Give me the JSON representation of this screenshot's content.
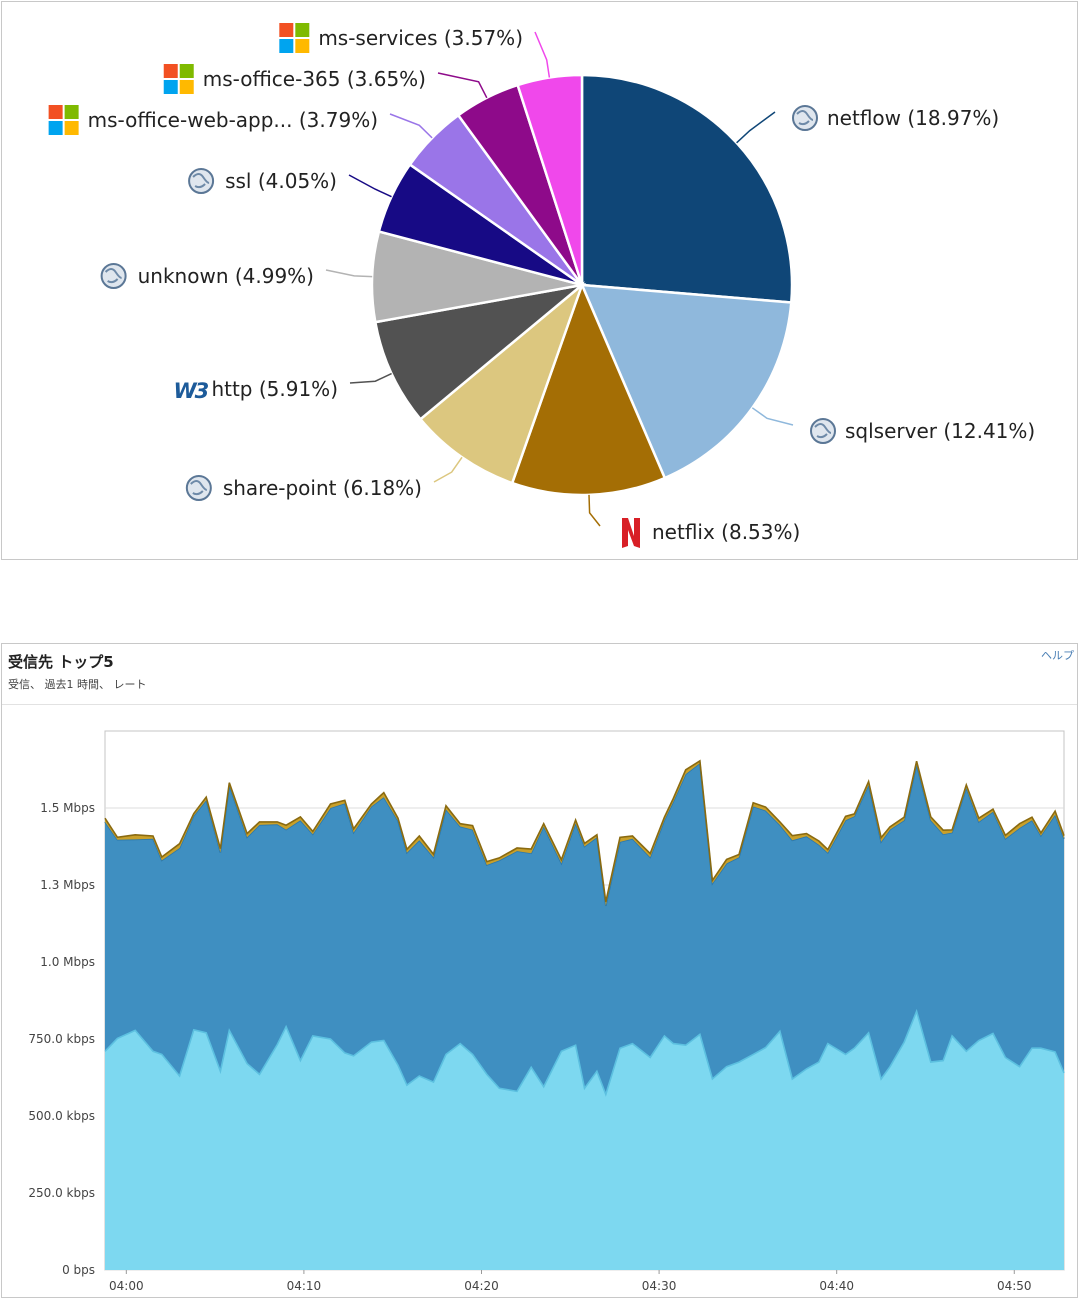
{
  "pie_panel": {
    "chart_data": {
      "type": "pie",
      "slices": [
        {
          "name": "netflow",
          "label": "netflow (18.97%)",
          "value": 18.97,
          "color": "#0f4677",
          "icon": "globe-icon"
        },
        {
          "name": "sqlserver",
          "label": "sqlserver (12.41%)",
          "value": 12.41,
          "color": "#8fb8dc",
          "icon": "globe-icon"
        },
        {
          "name": "netflix",
          "label": "netflix (8.53%)",
          "value": 8.53,
          "color": "#a46e05",
          "icon": "netflix-icon"
        },
        {
          "name": "share-point",
          "label": "share-point (6.18%)",
          "value": 6.18,
          "color": "#dcc77f",
          "icon": "globe-icon"
        },
        {
          "name": "http",
          "label": "http (5.91%)",
          "value": 5.91,
          "color": "#525252",
          "icon": "w3c-icon"
        },
        {
          "name": "unknown",
          "label": "unknown (4.99%)",
          "value": 4.99,
          "color": "#b3b3b3",
          "icon": "globe-icon"
        },
        {
          "name": "ssl",
          "label": "ssl (4.05%)",
          "value": 4.05,
          "color": "#170a85",
          "icon": "globe-icon"
        },
        {
          "name": "ms-office-web-app...",
          "label": "ms-office-web-app... (3.79%)",
          "value": 3.79,
          "color": "#9a75e8",
          "icon": "microsoft-icon"
        },
        {
          "name": "ms-office-365",
          "label": "ms-office-365 (3.65%)",
          "value": 3.65,
          "color": "#8e0a8a",
          "icon": "microsoft-icon"
        },
        {
          "name": "ms-services",
          "label": "ms-services (3.57%)",
          "value": 3.57,
          "color": "#f048eb",
          "icon": "microsoft-icon"
        }
      ]
    }
  },
  "area_panel": {
    "title": "受信先 トップ5",
    "subtitle": "受信、 過去1 時間、 レート",
    "help": "ヘルプ",
    "chart_data": {
      "type": "area",
      "stacked": true,
      "y_unit": "kbps",
      "ylim": [
        0,
        1750
      ],
      "ytick_values": [
        0,
        250,
        500,
        750,
        1000,
        1250,
        1500
      ],
      "ytick_labels": [
        "0 bps",
        "250.0 kbps",
        "500.0 kbps",
        "750.0 kbps",
        "1.0 Mbps",
        "1.3 Mbps",
        "1.5 Mbps"
      ],
      "x_minutes": [
        58.8,
        59.5,
        60.5,
        61.5,
        62.0,
        63.0,
        63.8,
        64.5,
        65.3,
        65.8,
        66.8,
        67.5,
        68.5,
        69.0,
        69.8,
        70.5,
        71.5,
        72.3,
        72.8,
        73.8,
        74.5,
        75.3,
        75.8,
        76.5,
        77.3,
        78.0,
        78.8,
        79.5,
        80.3,
        81.0,
        82.0,
        82.8,
        83.5,
        84.5,
        85.3,
        85.8,
        86.5,
        87.0,
        87.8,
        88.5,
        89.5,
        90.3,
        90.8,
        91.5,
        92.3,
        93.0,
        93.8,
        94.5,
        95.3,
        96.0,
        96.8,
        97.5,
        98.3,
        99.0,
        99.5,
        100.5,
        101.0,
        101.8,
        102.5,
        103.0,
        103.8,
        104.5,
        105.3,
        106.0,
        106.5,
        107.3,
        108.0,
        108.8,
        109.5,
        110.3,
        111.0,
        111.5,
        112.3,
        112.8
      ],
      "xtick_values": [
        60,
        70,
        80,
        90,
        100,
        110
      ],
      "xtick_labels": [
        "04:00",
        "04:10",
        "04:20",
        "04:30",
        "04:40",
        "04:50"
      ],
      "series": [
        {
          "color": "#7dd8f0",
          "line": "#5cc0e0",
          "values": [
            710,
            752,
            778,
            710,
            700,
            630,
            780,
            770,
            645,
            778,
            670,
            635,
            732,
            790,
            680,
            760,
            750,
            705,
            695,
            740,
            745,
            665,
            600,
            630,
            610,
            700,
            735,
            700,
            635,
            590,
            580,
            658,
            595,
            710,
            730,
            590,
            645,
            570,
            720,
            735,
            690,
            760,
            735,
            730,
            765,
            620,
            660,
            675,
            700,
            722,
            775,
            620,
            653,
            675,
            735,
            700,
            720,
            770,
            620,
            660,
            740,
            840,
            675,
            680,
            760,
            710,
            745,
            768,
            690,
            660,
            720,
            720,
            708,
            640
          ]
        },
        {
          "color": "#3f8fc1",
          "line": "#2a78ad",
          "values": [
            745,
            645,
            620,
            690,
            630,
            740,
            695,
            755,
            710,
            795,
            735,
            810,
            715,
            640,
            780,
            655,
            750,
            810,
            725,
            765,
            790,
            793,
            755,
            765,
            730,
            795,
            705,
            730,
            680,
            740,
            780,
            695,
            845,
            610,
            720,
            785,
            760,
            612,
            670,
            665,
            650,
            700,
            785,
            880,
            880,
            635,
            660,
            665,
            805,
            770,
            670,
            775,
            755,
            706,
            620,
            760,
            753,
            805,
            770,
            770,
            720,
            800,
            785,
            735,
            660,
            855,
            710,
            720,
            710,
            775,
            740,
            690,
            770,
            760
          ]
        },
        {
          "color": "#c9a02a",
          "line": "#8a6a10",
          "values": [
            12,
            8,
            15,
            9,
            11,
            14,
            7,
            10,
            13,
            9,
            12,
            10,
            8,
            14,
            11,
            9,
            13,
            10,
            12,
            8,
            15,
            9,
            11,
            14,
            10,
            12,
            9,
            13,
            11,
            8,
            10,
            14,
            9,
            12,
            11,
            10,
            8,
            13,
            15,
            9,
            12,
            10,
            11,
            14,
            8,
            10,
            13,
            9,
            12,
            11,
            10,
            15,
            9,
            12,
            10,
            13,
            8,
            11,
            14,
            9,
            10,
            12,
            11,
            13,
            9,
            10,
            12,
            8,
            11,
            14,
            10,
            9,
            12,
            10
          ]
        }
      ]
    }
  }
}
